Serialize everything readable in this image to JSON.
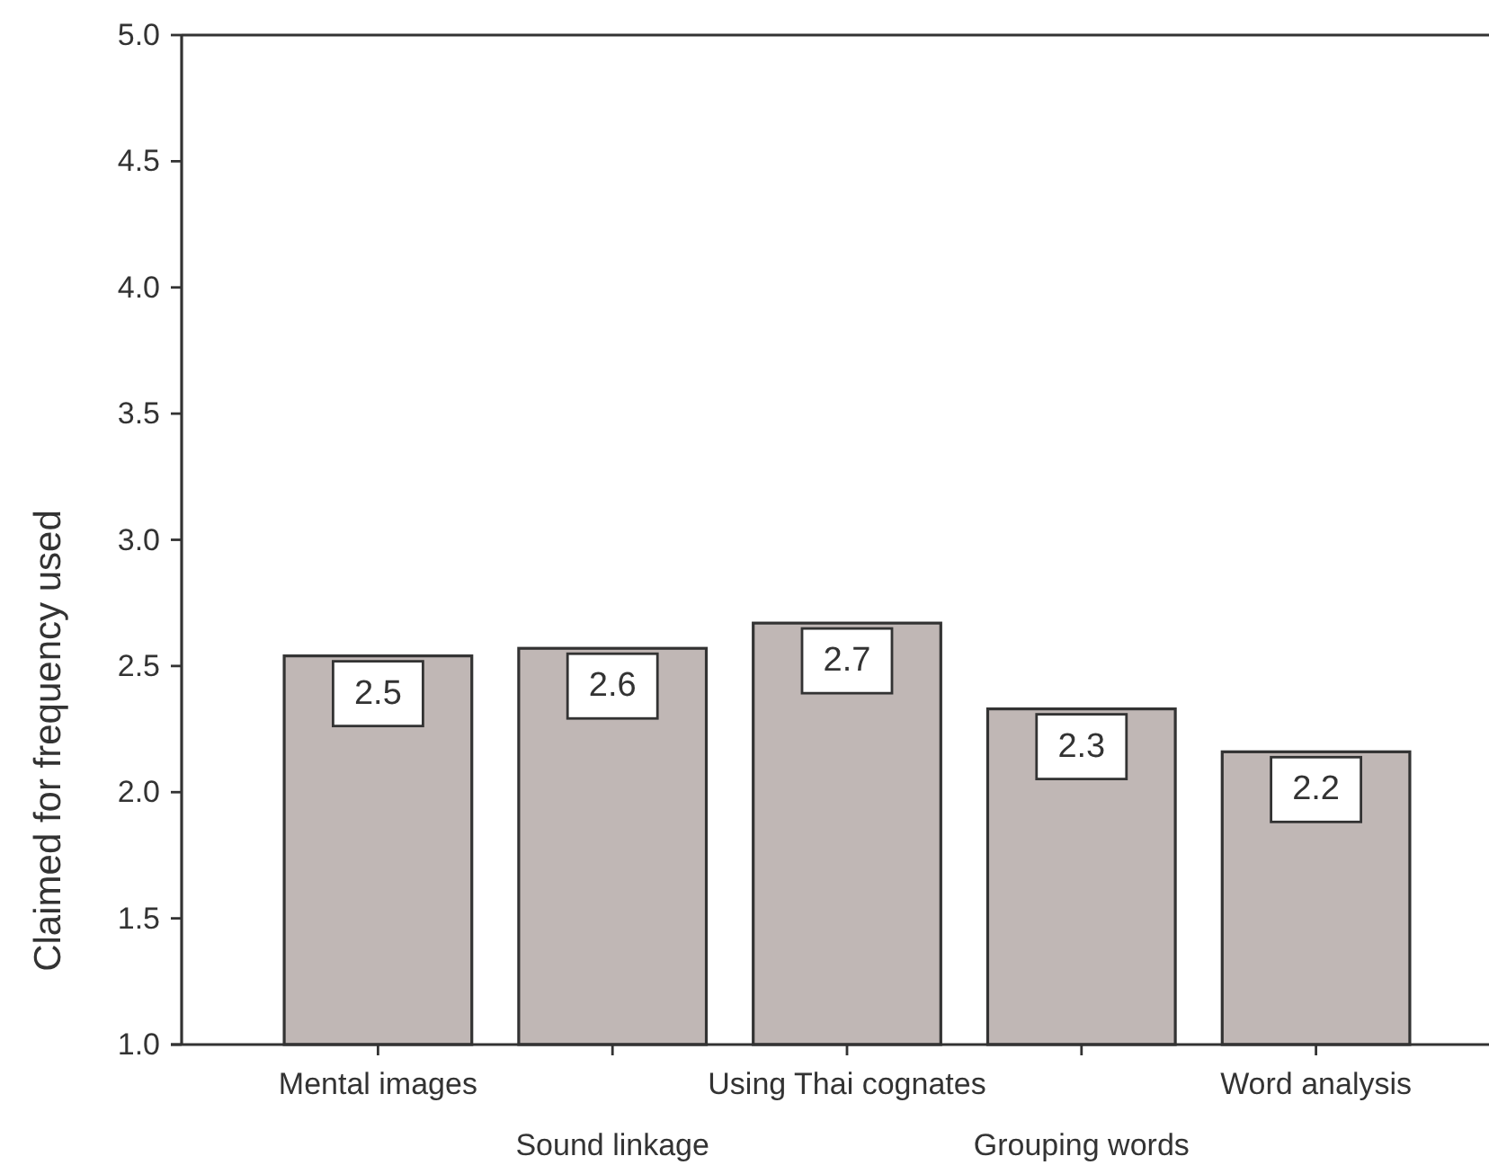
{
  "chart_data": {
    "type": "bar",
    "ylabel": "Claimed for frequency used",
    "categories": [
      "Mental images",
      "Sound linkage",
      "Using Thai cognates",
      "Grouping words",
      "Word analysis"
    ],
    "values": [
      2.54,
      2.57,
      2.67,
      2.33,
      2.16
    ],
    "value_labels": [
      "2.5",
      "2.6",
      "2.7",
      "2.3",
      "2.2"
    ],
    "color": "#c0b7b5",
    "ylim": [
      1,
      5
    ],
    "yticks": [
      {
        "value": 1,
        "label": "1.0"
      },
      {
        "value": 1.5,
        "label": "1.5"
      },
      {
        "value": 2,
        "label": "2.0"
      },
      {
        "value": 2.5,
        "label": "2.5"
      },
      {
        "value": 3,
        "label": "3.0"
      },
      {
        "value": 3.5,
        "label": "3.5"
      },
      {
        "value": 4,
        "label": "4.0"
      },
      {
        "value": 4.5,
        "label": "4.5"
      },
      {
        "value": 5,
        "label": "5.0"
      }
    ],
    "grid": false
  }
}
